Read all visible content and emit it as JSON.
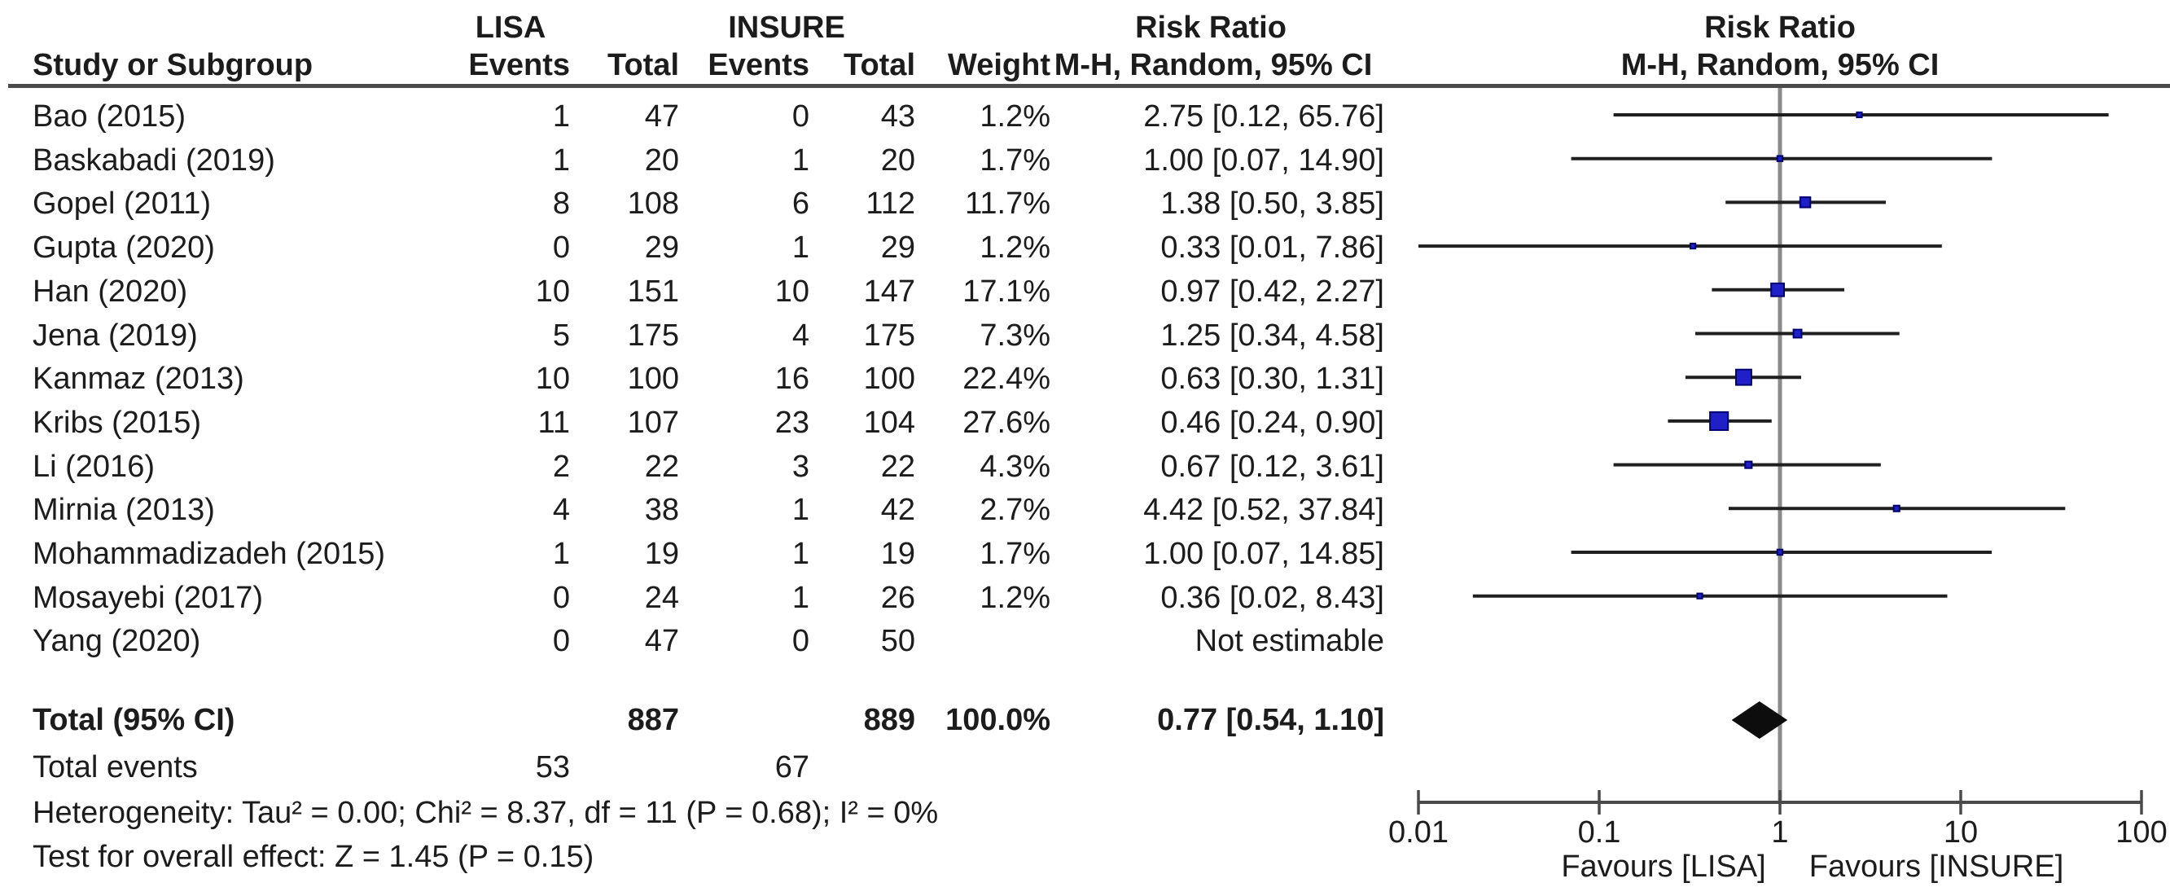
{
  "header": {
    "group_lisa": "LISA",
    "group_insure": "INSURE",
    "risk_ratio_title": "Risk Ratio",
    "columns": {
      "study": "Study or Subgroup",
      "events": "Events",
      "total": "Total",
      "weight": "Weight",
      "mh_random": "M-H, Random, 95% CI"
    }
  },
  "chart_data": {
    "type": "forest",
    "effect_measure": "Risk Ratio",
    "method": "M-H, Random, 95% CI",
    "scale": "log",
    "axis": {
      "ticks": [
        0.01,
        0.1,
        1,
        10,
        100
      ],
      "tick_labels": [
        "0.01",
        "0.1",
        "1",
        "10",
        "100"
      ],
      "favours_left": "Favours [LISA]",
      "favours_right": "Favours [INSURE]"
    },
    "studies": [
      {
        "name": "Bao (2015)",
        "lisa_events": "1",
        "lisa_total": "47",
        "insure_events": "0",
        "insure_total": "43",
        "weight": "1.2%",
        "weight_value": 1.2,
        "rr_text": "2.75 [0.12, 65.76]",
        "rr": 2.75,
        "ci_low": 0.12,
        "ci_high": 65.76,
        "estimable": true
      },
      {
        "name": "Baskabadi (2019)",
        "lisa_events": "1",
        "lisa_total": "20",
        "insure_events": "1",
        "insure_total": "20",
        "weight": "1.7%",
        "weight_value": 1.7,
        "rr_text": "1.00 [0.07, 14.90]",
        "rr": 1.0,
        "ci_low": 0.07,
        "ci_high": 14.9,
        "estimable": true
      },
      {
        "name": "Gopel (2011)",
        "lisa_events": "8",
        "lisa_total": "108",
        "insure_events": "6",
        "insure_total": "112",
        "weight": "11.7%",
        "weight_value": 11.7,
        "rr_text": "1.38 [0.50, 3.85]",
        "rr": 1.38,
        "ci_low": 0.5,
        "ci_high": 3.85,
        "estimable": true
      },
      {
        "name": "Gupta (2020)",
        "lisa_events": "0",
        "lisa_total": "29",
        "insure_events": "1",
        "insure_total": "29",
        "weight": "1.2%",
        "weight_value": 1.2,
        "rr_text": "0.33 [0.01, 7.86]",
        "rr": 0.33,
        "ci_low": 0.01,
        "ci_high": 7.86,
        "estimable": true
      },
      {
        "name": "Han (2020)",
        "lisa_events": "10",
        "lisa_total": "151",
        "insure_events": "10",
        "insure_total": "147",
        "weight": "17.1%",
        "weight_value": 17.1,
        "rr_text": "0.97 [0.42, 2.27]",
        "rr": 0.97,
        "ci_low": 0.42,
        "ci_high": 2.27,
        "estimable": true
      },
      {
        "name": "Jena (2019)",
        "lisa_events": "5",
        "lisa_total": "175",
        "insure_events": "4",
        "insure_total": "175",
        "weight": "7.3%",
        "weight_value": 7.3,
        "rr_text": "1.25 [0.34, 4.58]",
        "rr": 1.25,
        "ci_low": 0.34,
        "ci_high": 4.58,
        "estimable": true
      },
      {
        "name": "Kanmaz (2013)",
        "lisa_events": "10",
        "lisa_total": "100",
        "insure_events": "16",
        "insure_total": "100",
        "weight": "22.4%",
        "weight_value": 22.4,
        "rr_text": "0.63 [0.30, 1.31]",
        "rr": 0.63,
        "ci_low": 0.3,
        "ci_high": 1.31,
        "estimable": true
      },
      {
        "name": "Kribs (2015)",
        "lisa_events": "11",
        "lisa_total": "107",
        "insure_events": "23",
        "insure_total": "104",
        "weight": "27.6%",
        "weight_value": 27.6,
        "rr_text": "0.46 [0.24, 0.90]",
        "rr": 0.46,
        "ci_low": 0.24,
        "ci_high": 0.9,
        "estimable": true
      },
      {
        "name": "Li (2016)",
        "lisa_events": "2",
        "lisa_total": "22",
        "insure_events": "3",
        "insure_total": "22",
        "weight": "4.3%",
        "weight_value": 4.3,
        "rr_text": "0.67 [0.12, 3.61]",
        "rr": 0.67,
        "ci_low": 0.12,
        "ci_high": 3.61,
        "estimable": true
      },
      {
        "name": "Mirnia (2013)",
        "lisa_events": "4",
        "lisa_total": "38",
        "insure_events": "1",
        "insure_total": "42",
        "weight": "2.7%",
        "weight_value": 2.7,
        "rr_text": "4.42 [0.52, 37.84]",
        "rr": 4.42,
        "ci_low": 0.52,
        "ci_high": 37.84,
        "estimable": true
      },
      {
        "name": "Mohammadizadeh (2015)",
        "lisa_events": "1",
        "lisa_total": "19",
        "insure_events": "1",
        "insure_total": "19",
        "weight": "1.7%",
        "weight_value": 1.7,
        "rr_text": "1.00 [0.07, 14.85]",
        "rr": 1.0,
        "ci_low": 0.07,
        "ci_high": 14.85,
        "estimable": true
      },
      {
        "name": "Mosayebi (2017)",
        "lisa_events": "0",
        "lisa_total": "24",
        "insure_events": "1",
        "insure_total": "26",
        "weight": "1.2%",
        "weight_value": 1.2,
        "rr_text": "0.36 [0.02, 8.43]",
        "rr": 0.36,
        "ci_low": 0.02,
        "ci_high": 8.43,
        "estimable": true
      },
      {
        "name": "Yang (2020)",
        "lisa_events": "0",
        "lisa_total": "47",
        "insure_events": "0",
        "insure_total": "50",
        "weight": "",
        "weight_value": 0,
        "rr_text": "Not estimable",
        "rr": null,
        "ci_low": null,
        "ci_high": null,
        "estimable": false
      }
    ],
    "total_row": {
      "label": "Total (95% CI)",
      "lisa_total": "887",
      "insure_total": "889",
      "weight": "100.0%",
      "rr_text": "0.77 [0.54, 1.10]",
      "rr": 0.77,
      "ci_low": 0.54,
      "ci_high": 1.1
    },
    "total_events": {
      "label": "Total events",
      "lisa": "53",
      "insure": "67"
    },
    "footnotes": {
      "heterogeneity": "Heterogeneity: Tau² = 0.00; Chi² = 8.37, df = 11 (P = 0.68); I² = 0%",
      "overall_effect": "Test for overall effect: Z = 1.45 (P = 0.15)"
    },
    "colors": {
      "square_fill": "#2020c8",
      "square_border": "#000070",
      "ci_line": "#1f1f1f",
      "no_effect_line": "#8a8a8a",
      "axis_line": "#4a4a4a",
      "diamond": "#0d0d0d",
      "header_rule": "#4a4a4a",
      "text": "#1c1c1c"
    }
  }
}
